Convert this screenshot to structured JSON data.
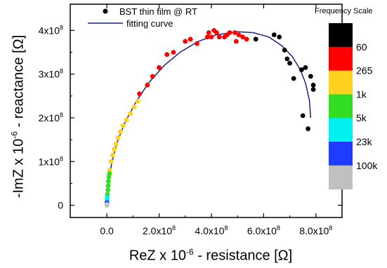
{
  "chart_data": {
    "type": "scatter",
    "legend_title": "Frequency Scale",
    "xlabel_parts": {
      "pre": "ReZ x 10",
      "sup": "-6",
      "post": " - resistance [Ω]"
    },
    "ylabel_parts": {
      "pre": "-ImZ x 10",
      "sup": "-6",
      "post": " - reactance [Ω]"
    },
    "xlim": [
      -140000000.0,
      900000000.0
    ],
    "ylim": [
      -28000000.0,
      460000000.0
    ],
    "x_ticks": [
      {
        "value": 0,
        "base": "0.0",
        "exp": ""
      },
      {
        "value": 200000000,
        "base": "2.0x10",
        "exp": "8"
      },
      {
        "value": 400000000,
        "base": "4.0x10",
        "exp": "8"
      },
      {
        "value": 600000000,
        "base": "6.0x10",
        "exp": "8"
      },
      {
        "value": 800000000,
        "base": "8.0x10",
        "exp": "8"
      }
    ],
    "y_ticks": [
      {
        "value": 0,
        "base": "0",
        "exp": ""
      },
      {
        "value": 100000000,
        "base": "1x10",
        "exp": "8"
      },
      {
        "value": 200000000,
        "base": "2x10",
        "exp": "8"
      },
      {
        "value": 300000000,
        "base": "3x10",
        "exp": "8"
      },
      {
        "value": 400000000,
        "base": "4x10",
        "exp": "8"
      }
    ],
    "legend": [
      {
        "label": "BST thin film  @ RT",
        "kind": "marker"
      },
      {
        "label": "fitting curve",
        "kind": "line",
        "color": "#1a237e"
      }
    ],
    "color_scale": [
      {
        "color": "#000000",
        "label": "60"
      },
      {
        "color": "#ff0000",
        "label": "265"
      },
      {
        "color": "#ffd21f",
        "label": "1k"
      },
      {
        "color": "#33dd22",
        "label": "5k"
      },
      {
        "color": "#00f0f0",
        "label": "23k"
      },
      {
        "color": "#1f3cff",
        "label": "100k"
      },
      {
        "color": "#c0c0c0",
        "label": ""
      }
    ],
    "fit_color": "#1a237e",
    "series": [
      {
        "color": "#000000",
        "points": [
          [
            570000000.0,
            380000000.0
          ],
          [
            640000000.0,
            390000000.0
          ],
          [
            660000000.0,
            385000000.0
          ],
          [
            680000000.0,
            355000000.0
          ],
          [
            690000000.0,
            335000000.0
          ],
          [
            700000000.0,
            325000000.0
          ],
          [
            715000000.0,
            290000000.0
          ],
          [
            745000000.0,
            310000000.0
          ],
          [
            760000000.0,
            315000000.0
          ],
          [
            780000000.0,
            295000000.0
          ],
          [
            790000000.0,
            275000000.0
          ],
          [
            790000000.0,
            265000000.0
          ],
          [
            750000000.0,
            205000000.0
          ],
          [
            770000000.0,
            175000000.0
          ]
        ]
      },
      {
        "color": "#ff0000",
        "points": [
          [
            125000000.0,
            255000000.0
          ],
          [
            155000000.0,
            275000000.0
          ],
          [
            175000000.0,
            295000000.0
          ],
          [
            200000000.0,
            315000000.0
          ],
          [
            230000000.0,
            345000000.0
          ],
          [
            255000000.0,
            350000000.0
          ],
          [
            300000000.0,
            375000000.0
          ],
          [
            320000000.0,
            380000000.0
          ],
          [
            345000000.0,
            370000000.0
          ],
          [
            385000000.0,
            385000000.0
          ],
          [
            390000000.0,
            395000000.0
          ],
          [
            400000000.0,
            385000000.0
          ],
          [
            410000000.0,
            400000000.0
          ],
          [
            420000000.0,
            395000000.0
          ],
          [
            430000000.0,
            385000000.0
          ],
          [
            450000000.0,
            385000000.0
          ],
          [
            460000000.0,
            390000000.0
          ],
          [
            470000000.0,
            395000000.0
          ],
          [
            490000000.0,
            395000000.0
          ],
          [
            505000000.0,
            390000000.0
          ],
          [
            520000000.0,
            385000000.0
          ],
          [
            535000000.0,
            380000000.0
          ],
          [
            495000000.0,
            375000000.0
          ]
        ]
      },
      {
        "color": "#ffd21f",
        "points": [
          [
            11000000.0,
            80000000.0
          ],
          [
            16000000.0,
            100000000.0
          ],
          [
            22000000.0,
            115000000.0
          ],
          [
            28000000.0,
            128000000.0
          ],
          [
            35000000.0,
            140000000.0
          ],
          [
            43000000.0,
            155000000.0
          ],
          [
            52000000.0,
            168000000.0
          ],
          [
            62000000.0,
            182000000.0
          ],
          [
            75000000.0,
            195000000.0
          ],
          [
            90000000.0,
            210000000.0
          ],
          [
            105000000.0,
            225000000.0
          ],
          [
            118000000.0,
            238000000.0
          ]
        ]
      },
      {
        "color": "#33dd22",
        "points": [
          [
            2000000.0,
            25000000.0
          ],
          [
            4000000.0,
            35000000.0
          ],
          [
            5000000.0,
            45000000.0
          ],
          [
            6000000.0,
            55000000.0
          ],
          [
            8000000.0,
            65000000.0
          ],
          [
            10000000.0,
            72000000.0
          ]
        ]
      },
      {
        "color": "#00f0f0",
        "points": [
          [
            1000000.0,
            12000000.0
          ],
          [
            2000000.0,
            18000000.0
          ]
        ]
      },
      {
        "color": "#1f3cff",
        "points": [
          [
            500000.0,
            6000000.0
          ]
        ]
      },
      {
        "color": "#c0c0c0",
        "points": [
          [
            0,
            0
          ],
          [
            200000.0,
            2000000.0
          ]
        ]
      }
    ],
    "fit_curve": [
      [
        0,
        0
      ],
      [
        2000000.0,
        25000000.0
      ],
      [
        8000000.0,
        60000000.0
      ],
      [
        20000000.0,
        100000000.0
      ],
      [
        40000000.0,
        145000000.0
      ],
      [
        70000000.0,
        190000000.0
      ],
      [
        110000000.0,
        235000000.0
      ],
      [
        160000000.0,
        280000000.0
      ],
      [
        220000000.0,
        320000000.0
      ],
      [
        280000000.0,
        350000000.0
      ],
      [
        350000000.0,
        375000000.0
      ],
      [
        420000000.0,
        390000000.0
      ],
      [
        500000000.0,
        397000000.0
      ],
      [
        560000000.0,
        395000000.0
      ],
      [
        620000000.0,
        385000000.0
      ],
      [
        670000000.0,
        365000000.0
      ],
      [
        710000000.0,
        340000000.0
      ],
      [
        740000000.0,
        310000000.0
      ],
      [
        760000000.0,
        280000000.0
      ],
      [
        775000000.0,
        240000000.0
      ],
      [
        780000000.0,
        200000000.0
      ]
    ]
  }
}
